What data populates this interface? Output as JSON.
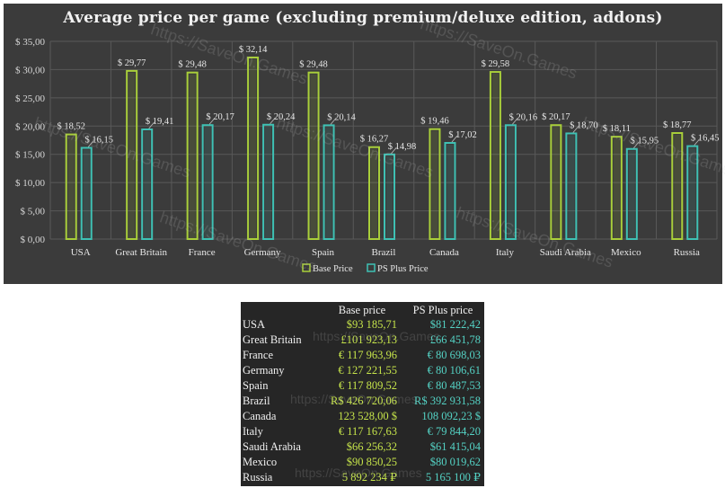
{
  "chart_data": {
    "type": "bar",
    "title": "Average price per game (excluding premium/deluxe edition, addons)",
    "categories": [
      "USA",
      "Great Britain",
      "France",
      "Germany",
      "Spain",
      "Brazil",
      "Canada",
      "Italy",
      "Saudi Arabia",
      "Mexico",
      "Russia"
    ],
    "series": [
      {
        "name": "Base Price",
        "color": "#a9cf3a",
        "values": [
          18.52,
          29.77,
          29.48,
          32.14,
          29.48,
          16.27,
          19.46,
          29.58,
          20.17,
          18.11,
          18.77
        ],
        "labels": [
          "$ 18,52",
          "$ 29,77",
          "$ 29,48",
          "$ 32,14",
          "$ 29,48",
          "$ 16,27",
          "$ 19,46",
          "$ 29,58",
          "$ 20,17",
          "$ 18,11",
          "$ 18,77"
        ]
      },
      {
        "name": "PS Plus Price",
        "color": "#3ec1b4",
        "values": [
          16.15,
          19.41,
          20.17,
          20.24,
          20.14,
          14.98,
          17.02,
          20.16,
          18.7,
          15.95,
          16.45
        ],
        "labels": [
          "$ 16,15",
          "$ 19,41",
          "$ 20,17",
          "$ 20,24",
          "$ 20,14",
          "$ 14,98",
          "$ 17,02",
          "$ 20,16",
          "$ 18,70",
          "$ 15,95",
          "$ 16,45"
        ]
      }
    ],
    "ylim": [
      0,
      35
    ],
    "yticks": [
      "$ 0,00",
      "$ 5,00",
      "$ 10,00",
      "$ 15,00",
      "$ 20,00",
      "$ 25,00",
      "$ 30,00",
      "$ 35,00"
    ],
    "grid": true,
    "legend": "bottom",
    "xlabel": "",
    "ylabel": ""
  },
  "watermark": "https://SaveOn.Games",
  "table": {
    "headers": [
      "",
      "Base price",
      "PS Plus price"
    ],
    "rows": [
      {
        "country": "USA",
        "base": "$93 185,71",
        "plus": "$81 222,42"
      },
      {
        "country": "Great Britain",
        "base": "£101 923,13",
        "plus": "£66 451,78"
      },
      {
        "country": "France",
        "base": "€ 117 963,96",
        "plus": "€ 80 698,03"
      },
      {
        "country": "Germany",
        "base": "€ 127 221,55",
        "plus": "€ 80 106,61"
      },
      {
        "country": "Spain",
        "base": "€ 117 809,52",
        "plus": "€ 80 487,53"
      },
      {
        "country": "Brazil",
        "base": "R$ 426 720,06",
        "plus": "R$ 392 931,58"
      },
      {
        "country": "Canada",
        "base": "123 528,00 $",
        "plus": "108 092,23 $"
      },
      {
        "country": "Italy",
        "base": "€ 117 167,63",
        "plus": "€ 79 844,20"
      },
      {
        "country": "Saudi Arabia",
        "base": "$66 256,32",
        "plus": "$61 415,04"
      },
      {
        "country": "Mexico",
        "base": "$90 850,25",
        "plus": "$80 019,62"
      },
      {
        "country": "Russia",
        "base": "5 892 234 ₽",
        "plus": "5 165 100 ₽"
      }
    ]
  }
}
